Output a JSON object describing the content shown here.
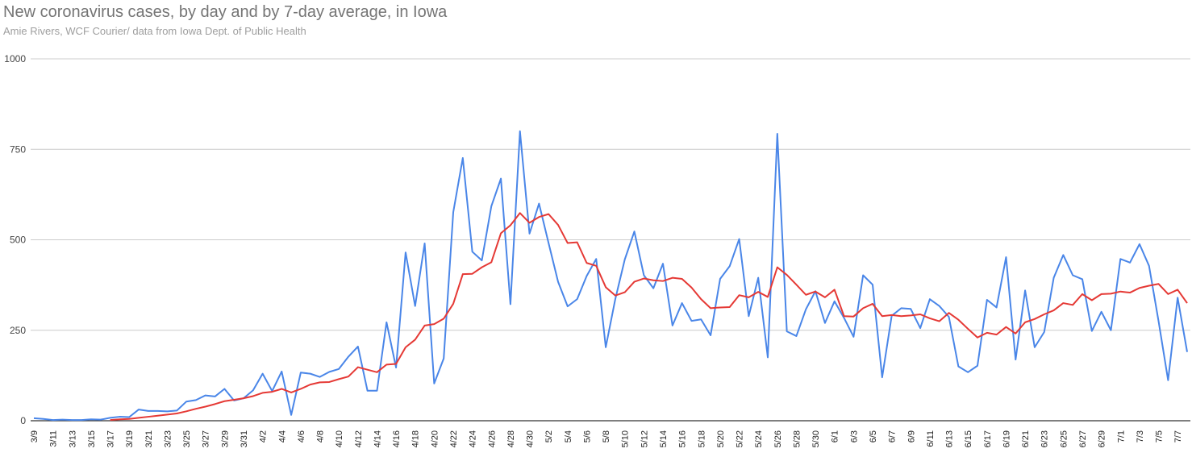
{
  "chart_data": {
    "type": "line",
    "title": "New coronavirus cases, by day and by 7-day average, in Iowa",
    "subtitle": "Amie Rivers, WCF Courier/ data from Iowa Dept. of Public Health",
    "xlabel": "",
    "ylabel": "",
    "ylim": [
      0,
      1000
    ],
    "yticks": [
      0,
      250,
      500,
      750,
      1000
    ],
    "grid": true,
    "legend": "none",
    "colors": {
      "daily": "#4a86e8",
      "average": "#e53935",
      "grid": "#cccccc"
    },
    "x": [
      "3/9",
      "3/10",
      "3/11",
      "3/12",
      "3/13",
      "3/14",
      "3/15",
      "3/16",
      "3/17",
      "3/18",
      "3/19",
      "3/20",
      "3/21",
      "3/22",
      "3/23",
      "3/24",
      "3/25",
      "3/26",
      "3/27",
      "3/28",
      "3/29",
      "3/30",
      "3/31",
      "4/1",
      "4/2",
      "4/3",
      "4/4",
      "4/5",
      "4/6",
      "4/7",
      "4/8",
      "4/9",
      "4/10",
      "4/11",
      "4/12",
      "4/13",
      "4/14",
      "4/15",
      "4/16",
      "4/17",
      "4/18",
      "4/19",
      "4/20",
      "4/21",
      "4/22",
      "4/23",
      "4/24",
      "4/25",
      "4/26",
      "4/27",
      "4/28",
      "4/29",
      "4/30",
      "5/1",
      "5/2",
      "5/3",
      "5/4",
      "5/5",
      "5/6",
      "5/7",
      "5/8",
      "5/9",
      "5/10",
      "5/11",
      "5/12",
      "5/13",
      "5/14",
      "5/15",
      "5/16",
      "5/17",
      "5/18",
      "5/19",
      "5/20",
      "5/21",
      "5/22",
      "5/23",
      "5/24",
      "5/25",
      "5/26",
      "5/27",
      "5/28",
      "5/29",
      "5/30",
      "5/31",
      "6/1",
      "6/2",
      "6/3",
      "6/4",
      "6/5",
      "6/6",
      "6/7",
      "6/8",
      "6/9",
      "6/10",
      "6/11",
      "6/12",
      "6/13",
      "6/14",
      "6/15",
      "6/16",
      "6/17",
      "6/18",
      "6/19",
      "6/20",
      "6/21",
      "6/22",
      "6/23",
      "6/24",
      "6/25",
      "6/26",
      "6/27",
      "6/28",
      "6/29",
      "6/30",
      "7/1",
      "7/2",
      "7/3",
      "7/4",
      "7/5",
      "7/6",
      "7/7",
      "7/8"
    ],
    "x_tick_labels": [
      "3/9",
      "3/11",
      "3/13",
      "3/15",
      "3/17",
      "3/19",
      "3/21",
      "3/23",
      "3/25",
      "3/27",
      "3/29",
      "3/31",
      "4/2",
      "4/4",
      "4/6",
      "4/8",
      "4/10",
      "4/12",
      "4/14",
      "4/16",
      "4/18",
      "4/20",
      "4/22",
      "4/24",
      "4/26",
      "4/28",
      "4/30",
      "5/2",
      "5/4",
      "5/6",
      "5/8",
      "5/10",
      "5/12",
      "5/14",
      "5/16",
      "5/18",
      "5/20",
      "5/22",
      "5/24",
      "5/26",
      "5/28",
      "5/30",
      "6/1",
      "6/3",
      "6/5",
      "6/7",
      "6/9",
      "6/11",
      "6/13",
      "6/15",
      "6/17",
      "6/19",
      "6/21",
      "6/23",
      "6/25",
      "6/27",
      "6/29",
      "7/1",
      "7/3",
      "7/5",
      "7/7"
    ],
    "series": [
      {
        "key": "daily",
        "values": [
          7,
          5,
          2,
          3,
          2,
          2,
          4,
          3,
          8,
          11,
          10,
          31,
          27,
          27,
          26,
          28,
          53,
          57,
          70,
          67,
          88,
          56,
          62,
          84,
          130,
          82,
          136,
          16,
          133,
          130,
          121,
          135,
          143,
          177,
          205,
          83,
          83,
          272,
          147,
          465,
          317,
          490,
          103,
          172,
          576,
          726,
          467,
          443,
          593,
          669,
          322,
          800,
          517,
          600,
          491,
          384,
          316,
          336,
          400,
          447,
          203,
          336,
          446,
          523,
          402,
          366,
          434,
          263,
          325,
          276,
          280,
          236,
          392,
          427,
          502,
          289,
          395,
          175,
          793,
          247,
          234,
          308,
          358,
          270,
          330,
          284,
          232,
          402,
          376,
          120,
          290,
          311,
          309,
          256,
          336,
          317,
          287,
          150,
          134,
          152,
          334,
          313,
          452,
          169,
          360,
          203,
          245,
          395,
          458,
          402,
          391,
          248,
          301,
          250,
          447,
          437,
          488,
          428,
          275,
          112,
          340,
          190
        ]
      },
      {
        "key": "average",
        "values": [
          null,
          null,
          null,
          null,
          null,
          null,
          null,
          null,
          2,
          4,
          5,
          8,
          11,
          14,
          17,
          20,
          26,
          33,
          39,
          46,
          54,
          58,
          62,
          68,
          77,
          80,
          88,
          78,
          88,
          100,
          106,
          107,
          115,
          122,
          148,
          141,
          134,
          155,
          157,
          203,
          224,
          263,
          267,
          282,
          323,
          405,
          406,
          424,
          438,
          518,
          540,
          574,
          547,
          563,
          571,
          541,
          491,
          493,
          436,
          428,
          369,
          346,
          355,
          384,
          393,
          388,
          386,
          395,
          392,
          368,
          336,
          311,
          313,
          314,
          347,
          341,
          356,
          342,
          424,
          403,
          376,
          348,
          357,
          341,
          362,
          289,
          288,
          311,
          323,
          289,
          292,
          289,
          291,
          294,
          283,
          275,
          298,
          279,
          254,
          230,
          243,
          238,
          259,
          241,
          272,
          281,
          294,
          305,
          325,
          320,
          350,
          333,
          350,
          351,
          357,
          354,
          367,
          373,
          378,
          350,
          362,
          325
        ]
      }
    ]
  }
}
